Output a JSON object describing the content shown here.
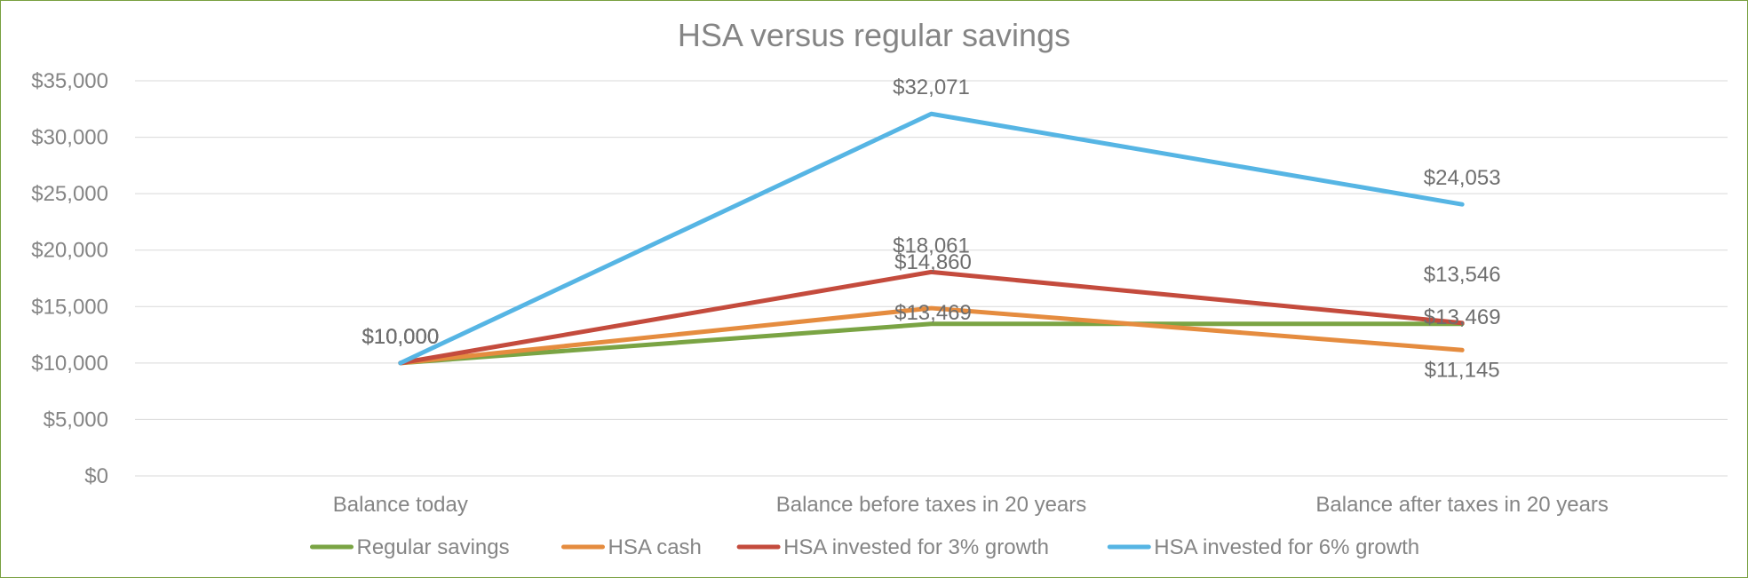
{
  "chart_data": {
    "type": "line",
    "title": "HSA versus regular savings",
    "categories": [
      "Balance today",
      "Balance before taxes in 20 years",
      "Balance after taxes in 20 years"
    ],
    "ylim": [
      0,
      35000
    ],
    "y_ticks": [
      "$0",
      "$5,000",
      "$10,000",
      "$15,000",
      "$20,000",
      "$25,000",
      "$30,000",
      "$35,000"
    ],
    "grid": true,
    "legend_position": "bottom",
    "series": [
      {
        "name": "Regular savings",
        "values": [
          10000,
          13469,
          13469
        ],
        "labels": [
          "$10,000",
          "$13,469",
          "$13,469"
        ],
        "color": "#7aa444"
      },
      {
        "name": "HSA cash",
        "values": [
          10000,
          14860,
          11145
        ],
        "labels": [
          "$10,000",
          "$14,860",
          "$11,145"
        ],
        "color": "#e58c3f"
      },
      {
        "name": "HSA invested for 3% growth",
        "values": [
          10000,
          18061,
          13546
        ],
        "labels": [
          "$10,000",
          "$18,061",
          "$13,546"
        ],
        "color": "#c44b3d"
      },
      {
        "name": "HSA invested for 6% growth",
        "values": [
          10000,
          32071,
          24053
        ],
        "labels": [
          "$10,000",
          "$32,071",
          "$24,053"
        ],
        "color": "#56b5e4"
      }
    ]
  }
}
